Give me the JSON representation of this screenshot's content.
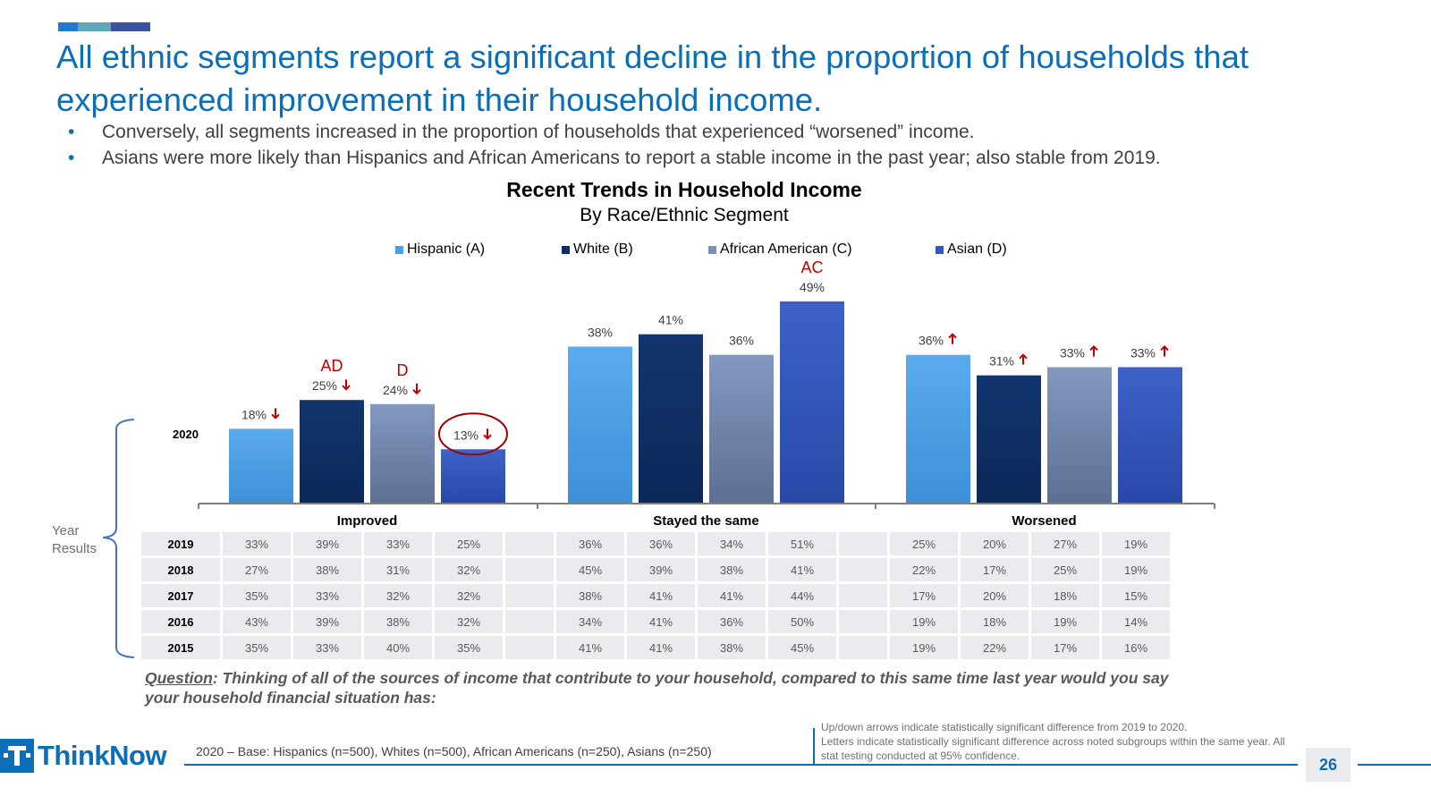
{
  "headline": "All ethnic segments report a significant decline in the proportion of households that experienced improvement in their household income.",
  "bullets": [
    "Conversely, all segments increased in the proportion of households that experienced “worsened” income.",
    "Asians were more likely than Hispanics and African Americans to report a stable income in the past year; also stable from 2019."
  ],
  "colors": {
    "brand_blue": "#0a6eb9",
    "accent_segments": [
      "#1f7ad0",
      "#5ea8b8",
      "#3a52a0"
    ],
    "sig_red": "#c00000"
  },
  "chart_data": {
    "type": "bar",
    "title": "Recent Trends in Household Income",
    "subtitle": "By Race/Ethnic Segment",
    "row_label": "2020",
    "categories": [
      "Improved",
      "Stayed the same",
      "Worsened"
    ],
    "ylim": [
      0,
      55
    ],
    "series": [
      {
        "name": "Hispanic (A)",
        "color": "#4aa0e8",
        "values": [
          18,
          38,
          36
        ],
        "labels": [
          "18%",
          "38%",
          "36%"
        ],
        "arrows": [
          "down",
          "",
          "up"
        ],
        "letters": [
          "",
          "",
          ""
        ]
      },
      {
        "name": "White (B)",
        "color": "#0e2f66",
        "values": [
          25,
          41,
          31
        ],
        "labels": [
          "25%",
          "41%",
          "31%"
        ],
        "arrows": [
          "down",
          "",
          "up"
        ],
        "letters": [
          "AD",
          "",
          ""
        ]
      },
      {
        "name": "African American (C)",
        "color": "#7990b8",
        "values": [
          24,
          36,
          33
        ],
        "labels": [
          "24%",
          "36%",
          "33%"
        ],
        "arrows": [
          "down",
          "",
          "up"
        ],
        "letters": [
          "D",
          "",
          ""
        ]
      },
      {
        "name": "Asian (D)",
        "color": "#3358c0",
        "values": [
          13,
          49,
          33
        ],
        "labels": [
          "13%",
          "49%",
          "33%"
        ],
        "arrows": [
          "down",
          "",
          "up"
        ],
        "letters": [
          "",
          "AC",
          ""
        ]
      }
    ],
    "highlighted": {
      "series": 3,
      "category": 0
    },
    "legend_position": "top",
    "grid": false
  },
  "year_results": {
    "label": "Year Results",
    "rows": [
      {
        "year": "2019",
        "improved": [
          "33%",
          "39%",
          "33%",
          "25%"
        ],
        "same": [
          "36%",
          "36%",
          "34%",
          "51%"
        ],
        "worsened": [
          "25%",
          "20%",
          "27%",
          "19%"
        ]
      },
      {
        "year": "2018",
        "improved": [
          "27%",
          "38%",
          "31%",
          "32%"
        ],
        "same": [
          "45%",
          "39%",
          "38%",
          "41%"
        ],
        "worsened": [
          "22%",
          "17%",
          "25%",
          "19%"
        ]
      },
      {
        "year": "2017",
        "improved": [
          "35%",
          "33%",
          "32%",
          "32%"
        ],
        "same": [
          "38%",
          "41%",
          "41%",
          "44%"
        ],
        "worsened": [
          "17%",
          "20%",
          "18%",
          "15%"
        ]
      },
      {
        "year": "2016",
        "improved": [
          "43%",
          "39%",
          "38%",
          "32%"
        ],
        "same": [
          "34%",
          "41%",
          "36%",
          "50%"
        ],
        "worsened": [
          "19%",
          "18%",
          "19%",
          "14%"
        ]
      },
      {
        "year": "2015",
        "improved": [
          "35%",
          "33%",
          "40%",
          "35%"
        ],
        "same": [
          "41%",
          "41%",
          "38%",
          "45%"
        ],
        "worsened": [
          "19%",
          "22%",
          "17%",
          "16%"
        ]
      }
    ]
  },
  "question": {
    "label": "Question",
    "text": ": Thinking of all of the sources of income that contribute to your household, compared to this same time last year would you say your household financial situation has:"
  },
  "footer": {
    "logo_text": "ThinkNow",
    "base_note": "2020 – Base: Hispanics (n=500), Whites (n=500), African Americans (n=250), Asians (n=250)",
    "footnote_lines": [
      "Up/down arrows indicate statistically significant difference from 2019 to 2020.",
      "Letters indicate statistically significant difference across noted subgroups within the same year.  All stat testing conducted at 95% confidence."
    ],
    "page_number": "26"
  }
}
